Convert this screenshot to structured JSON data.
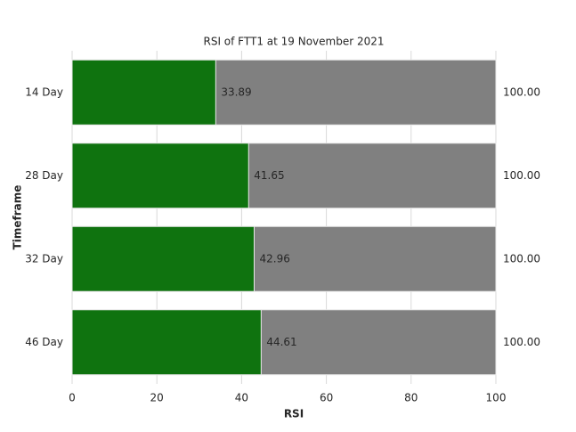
{
  "chart_data": {
    "type": "bar",
    "orientation": "horizontal",
    "overlay": true,
    "title": "RSI of FTT1 at 19 November 2021",
    "xlabel": "RSI",
    "ylabel": "Timeframe",
    "categories": [
      "14 Day",
      "28 Day",
      "32 Day",
      "46 Day"
    ],
    "series": [
      {
        "color": "#0f730f",
        "values": [
          33.89,
          41.65,
          42.96,
          44.61
        ]
      },
      {
        "color": "#808080",
        "values": [
          100,
          100,
          100,
          100
        ],
        "value_labels": [
          "100.00",
          "100.00",
          "100.00",
          "100.00"
        ]
      }
    ],
    "xlim": [
      0,
      100
    ],
    "xticks": [
      0,
      20,
      40,
      60,
      80,
      100
    ],
    "grid": true
  }
}
